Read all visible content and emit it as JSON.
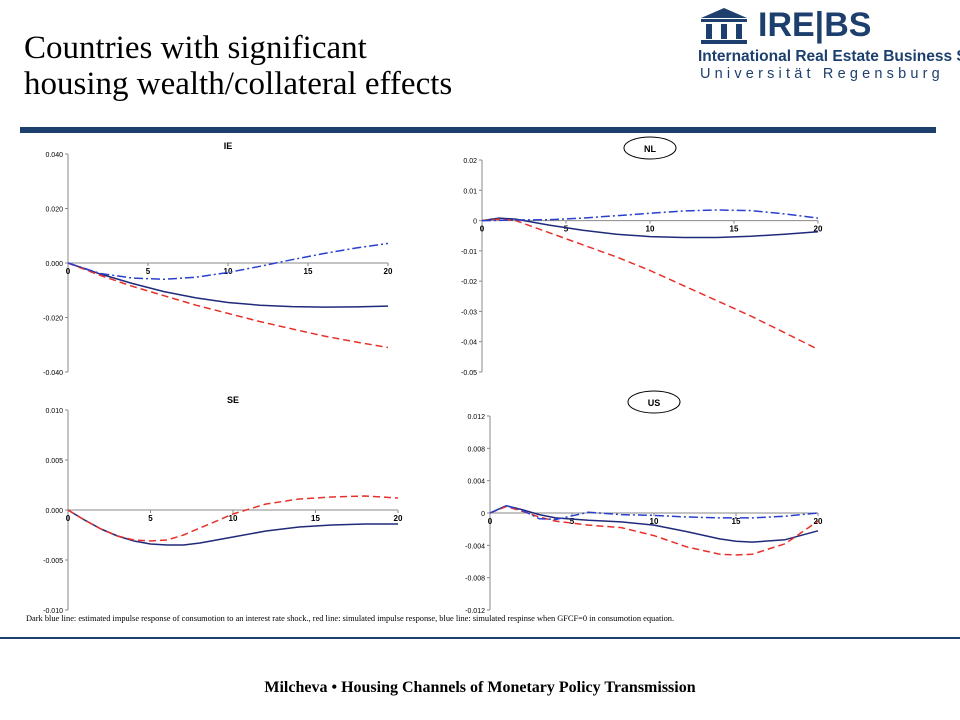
{
  "slide": {
    "title_line1": "Countries with significant",
    "title_line2": "housing wealth/collateral effects",
    "caption": "Dark blue line: estimated impulse response of consumotion to an interest rate shock., red line: simulated impulse response, blue line: simulated respinse when GFCF=0 in consumotion equation.",
    "footer": "Milcheva • Housing Channels of Monetary Policy Transmission"
  },
  "logo": {
    "name": "IRE|BS",
    "line1": "International Real Estate Business School",
    "line2": "Universität Regensburg",
    "icon": "building-columns-icon"
  },
  "colors": {
    "brand": "#1d3f6e",
    "estimated": "#1f2a7a",
    "simulated": "#e8302a",
    "gfcf_zero": "#2a3fd0"
  },
  "chart_data": [
    {
      "type": "line",
      "title": "IE",
      "title_circled": false,
      "xlim": [
        0,
        20
      ],
      "ylim": [
        -0.04,
        0.04
      ],
      "xticks": [
        0,
        5,
        10,
        15,
        20
      ],
      "yticks": [
        0.04,
        0.02,
        0.0,
        -0.02,
        -0.04
      ],
      "ytick_labels": [
        "0.040",
        "0.020",
        "0.000",
        "-0.020",
        "-0.040"
      ],
      "grid": false,
      "series": [
        {
          "style": "solid",
          "color_key": "estimated",
          "x": [
            0,
            2,
            4,
            6,
            8,
            10,
            12,
            14,
            16,
            18,
            20
          ],
          "y": [
            0,
            -0.004,
            -0.0075,
            -0.0105,
            -0.0128,
            -0.0145,
            -0.0155,
            -0.016,
            -0.0162,
            -0.0161,
            -0.0158
          ]
        },
        {
          "style": "dashed",
          "color_key": "simulated",
          "x": [
            0,
            2,
            4,
            6,
            8,
            10,
            12,
            14,
            16,
            18,
            20
          ],
          "y": [
            0,
            -0.0045,
            -0.0085,
            -0.012,
            -0.0155,
            -0.0185,
            -0.0215,
            -0.0242,
            -0.0268,
            -0.029,
            -0.031
          ]
        },
        {
          "style": "dashdot",
          "color_key": "gfcf_zero",
          "x": [
            0,
            2,
            4,
            6,
            8,
            10,
            12,
            14,
            16,
            18,
            20
          ],
          "y": [
            0,
            -0.0038,
            -0.0055,
            -0.006,
            -0.0052,
            -0.0035,
            -0.0012,
            0.0012,
            0.0035,
            0.0055,
            0.0072
          ]
        }
      ]
    },
    {
      "type": "line",
      "title": "NL",
      "title_circled": true,
      "xlim": [
        0,
        20
      ],
      "ylim": [
        -0.05,
        0.02
      ],
      "xticks": [
        0,
        5,
        10,
        15,
        20
      ],
      "yticks": [
        0.02,
        0.01,
        0,
        -0.01,
        -0.02,
        -0.03,
        -0.04,
        -0.05
      ],
      "ytick_labels": [
        "0.02",
        "0.01",
        "0",
        "-0.01",
        "-0.02",
        "-0.03",
        "-0.04",
        "-0.05"
      ],
      "grid": false,
      "series": [
        {
          "style": "solid",
          "color_key": "estimated",
          "x": [
            0,
            1,
            2,
            4,
            6,
            8,
            10,
            12,
            14,
            16,
            18,
            20
          ],
          "y": [
            0,
            0.0008,
            0.0005,
            -0.0015,
            -0.0032,
            -0.0045,
            -0.0053,
            -0.0056,
            -0.0056,
            -0.0052,
            -0.0045,
            -0.0037
          ]
        },
        {
          "style": "dashed",
          "color_key": "simulated",
          "x": [
            0,
            1,
            2,
            4,
            6,
            8,
            10,
            12,
            14,
            16,
            18,
            20
          ],
          "y": [
            0,
            0.0005,
            0,
            -0.004,
            -0.008,
            -0.012,
            -0.0165,
            -0.0215,
            -0.0265,
            -0.0315,
            -0.037,
            -0.0425
          ]
        },
        {
          "style": "dashdot",
          "color_key": "gfcf_zero",
          "x": [
            0,
            2,
            4,
            6,
            8,
            10,
            12,
            14,
            16,
            18,
            20
          ],
          "y": [
            0,
            0.0002,
            0.0003,
            0.0008,
            0.0016,
            0.0024,
            0.0032,
            0.0035,
            0.0033,
            0.0022,
            0.0008
          ]
        }
      ]
    },
    {
      "type": "line",
      "title": "SE",
      "title_circled": false,
      "xlim": [
        0,
        20
      ],
      "ylim": [
        -0.01,
        0.01
      ],
      "xticks": [
        0,
        5,
        10,
        15,
        20
      ],
      "yticks": [
        0.01,
        0.005,
        0.0,
        -0.005,
        -0.01
      ],
      "ytick_labels": [
        "0.010",
        "0.005",
        "0.000",
        "-0.005",
        "-0.010"
      ],
      "grid": false,
      "series": [
        {
          "style": "solid",
          "color_key": "estimated",
          "x": [
            0,
            1,
            2,
            3,
            4,
            5,
            6,
            7,
            8,
            10,
            12,
            14,
            16,
            18,
            20
          ],
          "y": [
            0,
            -0.001,
            -0.0019,
            -0.0026,
            -0.0031,
            -0.0034,
            -0.0035,
            -0.0035,
            -0.0033,
            -0.0027,
            -0.0021,
            -0.0017,
            -0.0015,
            -0.0014,
            -0.0014
          ]
        },
        {
          "style": "dashed",
          "color_key": "simulated",
          "x": [
            0,
            1,
            2,
            3,
            4,
            5,
            6,
            7,
            8,
            10,
            12,
            14,
            16,
            18,
            20
          ],
          "y": [
            0,
            -0.001,
            -0.0019,
            -0.0026,
            -0.003,
            -0.0031,
            -0.003,
            -0.0025,
            -0.0018,
            -0.0004,
            0.0006,
            0.0011,
            0.0013,
            0.0014,
            0.0012
          ]
        }
      ]
    },
    {
      "type": "line",
      "title": "US",
      "title_circled": true,
      "xlim": [
        0,
        20
      ],
      "ylim": [
        -0.012,
        0.012
      ],
      "xticks": [
        0,
        5,
        10,
        15,
        20
      ],
      "yticks": [
        0.012,
        0.008,
        0.004,
        0,
        -0.004,
        -0.008,
        -0.012
      ],
      "ytick_labels": [
        "0.012",
        "0.008",
        "0.004",
        "0",
        "-0.004",
        "-0.008",
        "-0.012"
      ],
      "grid": false,
      "series": [
        {
          "style": "solid",
          "color_key": "estimated",
          "x": [
            0,
            1,
            2,
            3,
            4,
            6,
            8,
            10,
            12,
            14,
            15,
            16,
            18,
            20
          ],
          "y": [
            0,
            0.0009,
            0.0004,
            -0.0002,
            -0.0006,
            -0.0009,
            -0.0011,
            -0.0015,
            -0.0023,
            -0.0032,
            -0.0035,
            -0.0036,
            -0.0033,
            -0.0022
          ]
        },
        {
          "style": "dashed",
          "color_key": "simulated",
          "x": [
            0,
            1,
            2,
            3,
            4,
            6,
            8,
            10,
            12,
            14,
            15,
            16,
            18,
            20
          ],
          "y": [
            0,
            0.0008,
            0.0002,
            -0.0005,
            -0.001,
            -0.0015,
            -0.0018,
            -0.0028,
            -0.0042,
            -0.0051,
            -0.0052,
            -0.0051,
            -0.0038,
            -0.001
          ]
        },
        {
          "style": "dashdot",
          "color_key": "gfcf_zero",
          "x": [
            0,
            1,
            2,
            3,
            4,
            6,
            8,
            10,
            12,
            14,
            16,
            18,
            20
          ],
          "y": [
            0,
            0.0009,
            0.0003,
            -0.0007,
            -0.0008,
            0.0001,
            -0.0002,
            -0.0003,
            -0.0005,
            -0.0006,
            -0.0006,
            -0.0004,
            0
          ]
        }
      ]
    }
  ]
}
